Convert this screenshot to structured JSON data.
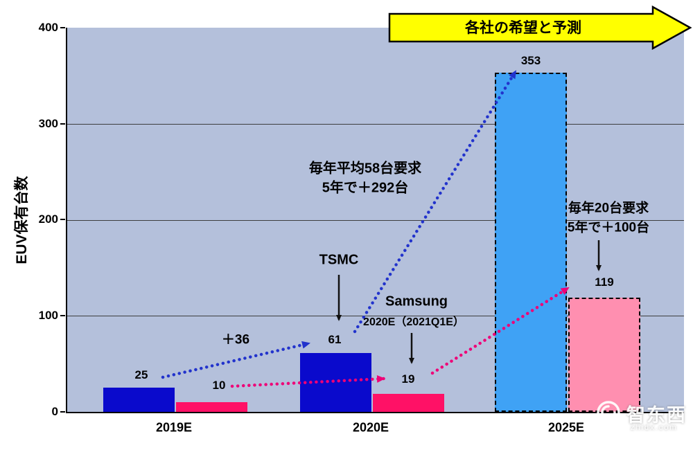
{
  "banner": {
    "label": "各社の希望と予測"
  },
  "y_axis": {
    "label": "EUV保有台数"
  },
  "annotations": {
    "plus36": "＋36",
    "tsmc_demand_line1": "毎年平均58台要求",
    "tsmc_demand_line2": "5年で＋292台",
    "samsung_demand_line1": "毎年20台要求",
    "samsung_demand_line2": "5年で＋100台",
    "tsmc": "TSMC",
    "samsung": "Samsung",
    "samsung_sub": "2020E（2021Q1E）"
  },
  "watermark": {
    "name": "智东西",
    "site": "zhidx.com"
  },
  "colors": {
    "tsmc_actual": "#0a0acc",
    "samsung_actual": "#ff1166",
    "tsmc_forecast": "#3fa2f5",
    "samsung_forecast": "#ff8fb0",
    "plot_bg": "#b4c0db",
    "banner_bg": "#ffff00",
    "arrow_blue": "#2233cc",
    "arrow_pink": "#ee0077"
  },
  "chart_data": {
    "type": "bar",
    "categories": [
      "2019E",
      "2020E",
      "2025E"
    ],
    "series": [
      {
        "name": "TSMC",
        "values": [
          25,
          61,
          353
        ]
      },
      {
        "name": "Samsung",
        "values": [
          10,
          19,
          119
        ]
      }
    ],
    "title": "各社の希望と予測",
    "xlabel": "",
    "ylabel": "EUV保有台数",
    "ylim": [
      0,
      400
    ],
    "yticks": [
      0,
      100,
      200,
      300,
      400
    ],
    "grid": true,
    "legend_position": "none",
    "forecast_note": "2025E bars drawn as dashed-outline forecast bars"
  }
}
